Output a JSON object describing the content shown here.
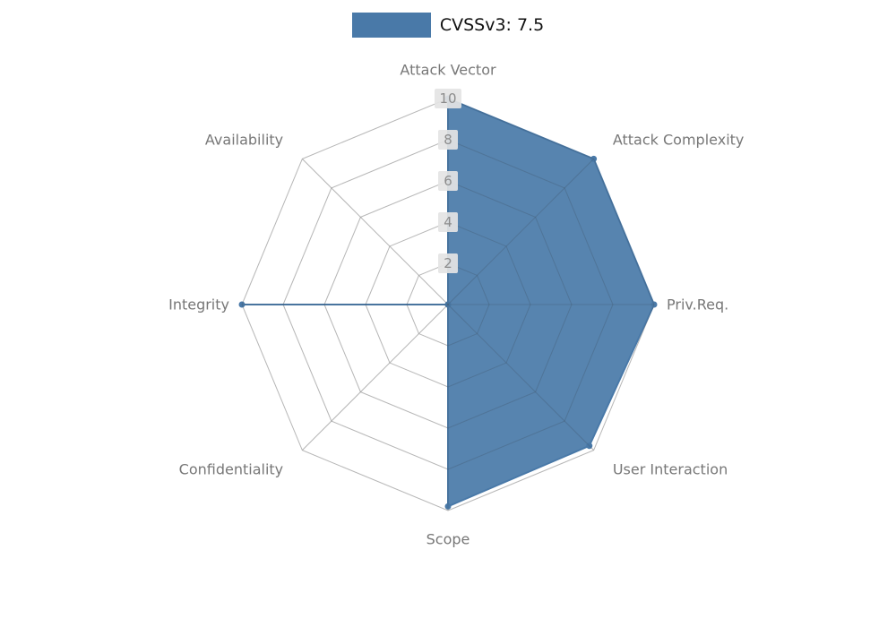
{
  "legend": {
    "label": "CVSSv3: 7.5"
  },
  "chart_data": {
    "type": "radar",
    "title": "",
    "legend_entries": [
      "CVSSv3: 7.5"
    ],
    "legend_position": "top-center",
    "categories": [
      "Attack Vector",
      "Attack Complexity",
      "Priv.Req.",
      "User Interaction",
      "Scope",
      "Confidentiality",
      "Integrity",
      "Availability"
    ],
    "series": [
      {
        "name": "CVSSv3: 7.5",
        "values": [
          10,
          10,
          10,
          9.7,
          9.8,
          0,
          10,
          0
        ]
      }
    ],
    "ticks": [
      2,
      4,
      6,
      8,
      10
    ],
    "rlim": [
      0,
      10
    ],
    "grid": true,
    "colors": {
      "series_fill": "#4979a8",
      "series_stroke": "#4979a8",
      "grid": "#d2d2d2",
      "grid_overlay": "rgba(60,60,60,0.18)",
      "tick_label_bg": "#e4e4e4",
      "tick_label_text": "#8c8c8c",
      "category_label": "#777777"
    }
  }
}
